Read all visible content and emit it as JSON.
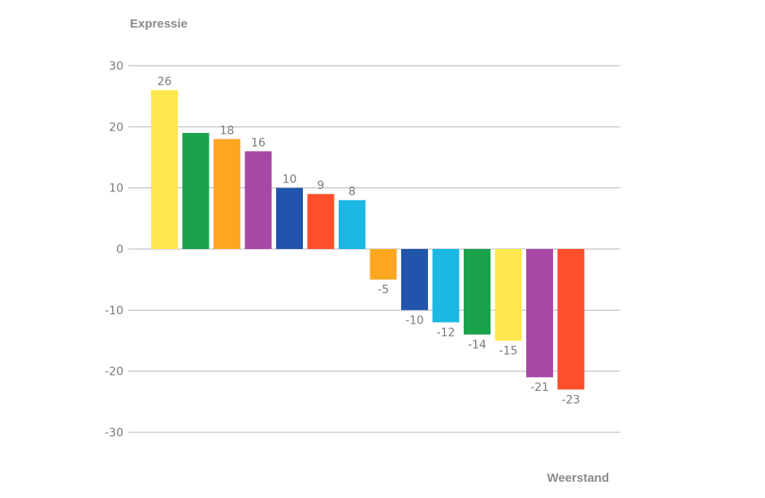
{
  "chart_data": {
    "type": "bar",
    "title": "",
    "ylabel": "Expressie",
    "xlabel": "Weerstand",
    "ylim": [
      -30,
      30
    ],
    "yticks": [
      30,
      20,
      10,
      0,
      -10,
      -20,
      -30
    ],
    "grid": true,
    "values": [
      26,
      19,
      18,
      16,
      10,
      9,
      8,
      -5,
      -10,
      -12,
      -14,
      -15,
      -21,
      -23
    ],
    "labels": [
      "26",
      "",
      "18",
      "16",
      "10",
      "9",
      "8",
      "-5",
      "-10",
      "-12",
      "-14",
      "-15",
      "-21",
      "-23"
    ],
    "colors": [
      "#FFE74F",
      "#1BA34C",
      "#FDA721",
      "#A748A6",
      "#2055AB",
      "#FF4E2A",
      "#1BB8E3",
      "#FDA721",
      "#2055AB",
      "#1BB8E3",
      "#1BA34C",
      "#FFE74F",
      "#A748A6",
      "#FF4E2A"
    ]
  }
}
